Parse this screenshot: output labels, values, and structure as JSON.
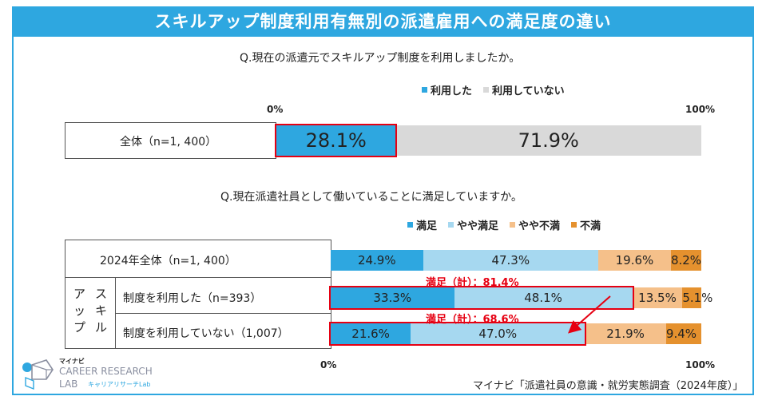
{
  "title": "スキルアップ制度利用有無別の派遣雇用への満足度の違い",
  "q1": {
    "question": "Q.現在の派遣元でスキルアップ制度を利用しましたか。",
    "legend": [
      {
        "label": "利用した",
        "color": "#2ea7e0"
      },
      {
        "label": "利用していない",
        "color": "#d9d9d9"
      }
    ],
    "axis_start": "0%",
    "axis_end": "100%",
    "row_label": "全体（n=1, 400）"
  },
  "q2": {
    "question": "Q.現在派遣社員として働いていることに満足していますか。",
    "legend": [
      {
        "label": "満足",
        "color": "#2ea7e0"
      },
      {
        "label": "やや満足",
        "color": "#a6d8f0"
      },
      {
        "label": "やや不満",
        "color": "#f5c08a"
      },
      {
        "label": "不満",
        "color": "#e5912e"
      }
    ],
    "row_label_all": "2024年全体（n=1, 400）",
    "group_label_chars": [
      "ア",
      "ス",
      "ッ",
      "キ",
      "プ",
      "ル"
    ],
    "row_label_used": "制度を利用した（n=393）",
    "row_label_not_used": "制度を利用していない（1,007）",
    "annotation_used": "満足（計）：81.4%",
    "annotation_not_used": "満足（計）：68.6%",
    "axis_start": "0%",
    "axis_end": "100%"
  },
  "chart_data": [
    {
      "type": "bar",
      "orientation": "horizontal-stacked",
      "title": "Q.現在の派遣元でスキルアップ制度を利用しましたか。",
      "categories": [
        "全体（n=1, 400）"
      ],
      "series": [
        {
          "name": "利用した",
          "values": [
            28.1
          ],
          "labels": [
            "28.1%"
          ],
          "color": "#2ea7e0"
        },
        {
          "name": "利用していない",
          "values": [
            71.9
          ],
          "labels": [
            "71.9%"
          ],
          "color": "#d9d9d9"
        }
      ],
      "xlim": [
        0,
        100
      ]
    },
    {
      "type": "bar",
      "orientation": "horizontal-stacked",
      "title": "Q.現在派遣社員として働いていることに満足していますか。",
      "categories": [
        "2024年全体（n=1, 400）",
        "制度を利用した（n=393）",
        "制度を利用していない（1,007）"
      ],
      "series": [
        {
          "name": "満足",
          "values": [
            24.9,
            33.3,
            21.6
          ],
          "labels": [
            "24.9%",
            "33.3%",
            "21.6%"
          ],
          "color": "#2ea7e0"
        },
        {
          "name": "やや満足",
          "values": [
            47.3,
            48.1,
            47.0
          ],
          "labels": [
            "47.3%",
            "48.1%",
            "47.0%"
          ],
          "color": "#a6d8f0"
        },
        {
          "name": "やや不満",
          "values": [
            19.6,
            13.5,
            21.9
          ],
          "labels": [
            "19.6%",
            "13.5%",
            "21.9%"
          ],
          "color": "#f5c08a"
        },
        {
          "name": "不満",
          "values": [
            8.2,
            5.1,
            9.4
          ],
          "labels": [
            "8.2%",
            "5.1%",
            "9.4%"
          ],
          "color": "#e5912e"
        }
      ],
      "xlim": [
        0,
        100
      ]
    }
  ],
  "source": "マイナビ「派遣社員の意識・就労実態調査（2024年度）」",
  "logo": {
    "brand": "マイナビ",
    "name": "CAREER RESEARCH",
    "sub": "LAB",
    "sub_jp": "キャリアリサーチLab"
  }
}
